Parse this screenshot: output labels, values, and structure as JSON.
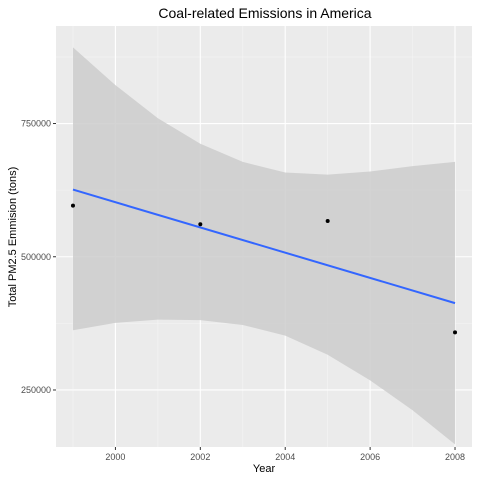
{
  "chart_data": {
    "type": "scatter",
    "title": "Coal-related Emissions in America",
    "xlabel": "Year",
    "ylabel": "Total PM2.5 Emmision (tons)",
    "x": [
      1999,
      2002,
      2005,
      2008
    ],
    "y": [
      596000,
      561000,
      567000,
      358000
    ],
    "xlim": [
      1998.6,
      2008.4
    ],
    "ylim": [
      143000,
      933000
    ],
    "x_ticks": [
      2000,
      2002,
      2004,
      2006,
      2008
    ],
    "x_tick_labels": [
      "2000",
      "2002",
      "2004",
      "2006",
      "2008"
    ],
    "y_ticks": [
      250000,
      500000,
      750000
    ],
    "y_tick_labels": [
      "250000",
      "500000",
      "750000"
    ],
    "fit": {
      "method": "linear",
      "x_range": [
        1999,
        2008
      ],
      "y_range": [
        626000,
        413000
      ]
    },
    "confidence_band": [
      {
        "x": 1999,
        "lower": 362000,
        "upper": 893000
      },
      {
        "x": 2000,
        "lower": 376000,
        "upper": 822000
      },
      {
        "x": 2001,
        "lower": 382000,
        "upper": 760000
      },
      {
        "x": 2002,
        "lower": 381000,
        "upper": 712000
      },
      {
        "x": 2003,
        "lower": 372000,
        "upper": 678000
      },
      {
        "x": 2004,
        "lower": 352000,
        "upper": 658000
      },
      {
        "x": 2005,
        "lower": 316000,
        "upper": 654000
      },
      {
        "x": 2006,
        "lower": 268000,
        "upper": 660000
      },
      {
        "x": 2007,
        "lower": 212000,
        "upper": 670000
      },
      {
        "x": 2008,
        "lower": 148000,
        "upper": 678000
      }
    ],
    "grid": true,
    "colors": {
      "panel": "#ebebeb",
      "grid_major": "#ffffff",
      "grid_minor": "#f5f5f5",
      "band": "#cccccc",
      "line": "#3366ff",
      "point": "#000000"
    }
  }
}
